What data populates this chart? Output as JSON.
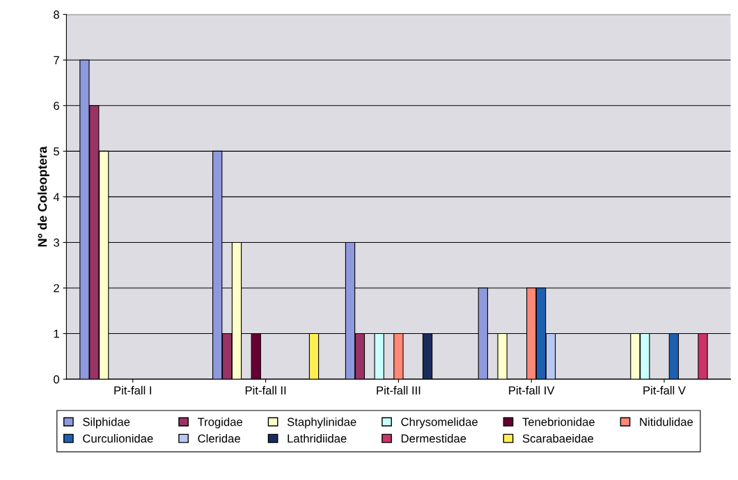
{
  "chart_data": {
    "type": "bar",
    "ylabel": "Nº de Coleoptera",
    "categories": [
      "Pit-fall I",
      "Pit-fall II",
      "Pit-fall III",
      "Pit-fall IV",
      "Pit-fall V"
    ],
    "ylim": [
      0,
      8
    ],
    "yticks": [
      0,
      1,
      2,
      3,
      4,
      5,
      6,
      7,
      8
    ],
    "grid": "y",
    "legend": "bottom",
    "series": [
      {
        "name": "Silphidae",
        "color": "#8f99dd",
        "values": [
          7,
          5,
          3,
          2,
          null
        ]
      },
      {
        "name": "Trogidae",
        "color": "#993366",
        "values": [
          6,
          1,
          1,
          null,
          null
        ]
      },
      {
        "name": "Staphylinidae",
        "color": "#ffffcc",
        "values": [
          5,
          3,
          null,
          1,
          1
        ]
      },
      {
        "name": "Chrysomelidae",
        "color": "#ccffff",
        "values": [
          null,
          null,
          1,
          null,
          1
        ]
      },
      {
        "name": "Tenebrionidae",
        "color": "#660033",
        "values": [
          null,
          1,
          null,
          null,
          null
        ]
      },
      {
        "name": "Nitidulidae",
        "color": "#ff8877",
        "values": [
          null,
          null,
          1,
          2,
          null
        ]
      },
      {
        "name": "Curculionidae",
        "color": "#1f5fb0",
        "values": [
          null,
          null,
          null,
          2,
          1
        ]
      },
      {
        "name": "Cleridae",
        "color": "#b8c8f0",
        "values": [
          null,
          null,
          null,
          1,
          null
        ]
      },
      {
        "name": "Lathridiidae",
        "color": "#1a2a5a",
        "values": [
          null,
          null,
          1,
          null,
          null
        ]
      },
      {
        "name": "Dermestidae",
        "color": "#cc3366",
        "values": [
          null,
          null,
          null,
          null,
          1
        ]
      },
      {
        "name": "Scarabaeidae",
        "color": "#ffee55",
        "values": [
          null,
          1,
          null,
          null,
          null
        ]
      }
    ]
  }
}
